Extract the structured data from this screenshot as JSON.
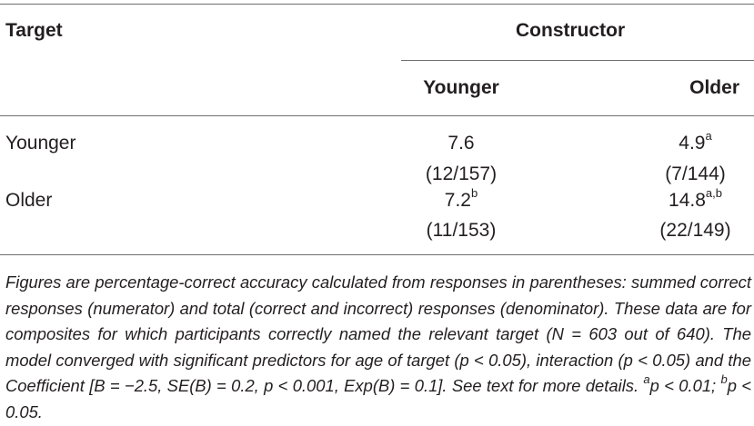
{
  "table": {
    "header": {
      "target": "Target",
      "constructor": "Constructor",
      "younger": "Younger",
      "older": "Older"
    },
    "rows": [
      {
        "label": "Younger",
        "younger_value": "7.6",
        "younger_sup": "",
        "younger_counts": "(12/157)",
        "older_value": "4.9",
        "older_sup": "a",
        "older_counts": "(7/144)"
      },
      {
        "label": "Older",
        "younger_value": "7.2",
        "younger_sup": "b",
        "younger_counts": "(11/153)",
        "older_value": "14.8",
        "older_sup": "a,b",
        "older_counts": "(22/149)"
      }
    ]
  },
  "footnote": {
    "main": "Figures are percentage-correct accuracy calculated from responses in parentheses: summed correct responses (numerator) and total (correct and incorrect) responses (denominator). These data are for composites for which participants correctly named the relevant target (N = 603 out of 640). The model converged with significant predictors for age of target (p < 0.05), interaction (p < 0.05) and the Coefficient [B = −2.5, SE(B) = 0.2, p < 0.001, Exp(B) = 0.1]. See text for more details. ",
    "sup_a": "a",
    "note_a": "p < 0.01; ",
    "sup_b": "b",
    "note_b": "p < 0.05."
  }
}
